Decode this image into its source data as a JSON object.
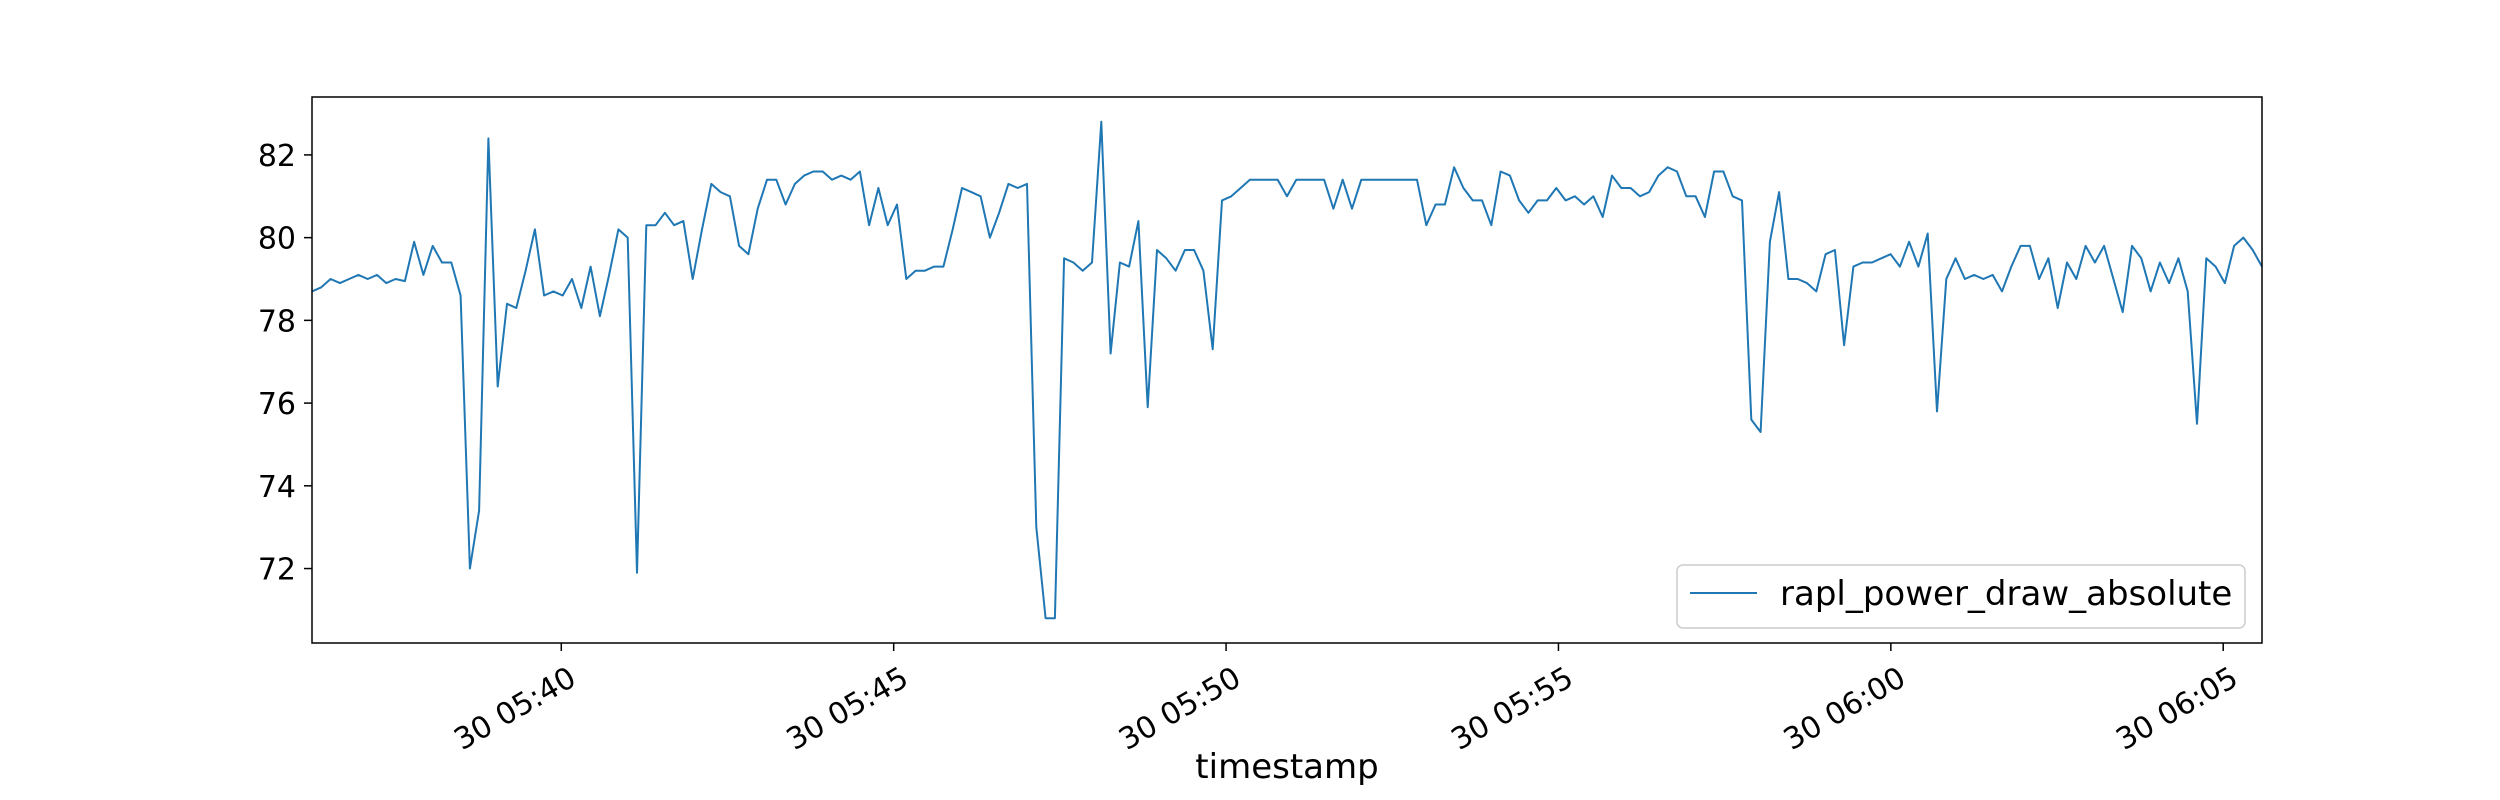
{
  "chart_data": {
    "type": "line",
    "title": "",
    "xlabel": "timestamp",
    "ylabel": "",
    "x_start": "05:36:15",
    "x_end": "06:05:35",
    "xlim": [
      "05:36:15",
      "06:05:35"
    ],
    "ylim": [
      70.2,
      83.4
    ],
    "grid": false,
    "legend_placement": "lower right",
    "x_ticks": [
      {
        "time": "05:40",
        "label": "30 05:40"
      },
      {
        "time": "05:45",
        "label": "30 05:45"
      },
      {
        "time": "05:50",
        "label": "30 05:50"
      },
      {
        "time": "05:55",
        "label": "30 05:55"
      },
      {
        "time": "06:00",
        "label": "30 06:00"
      },
      {
        "time": "06:05",
        "label": "30 06:05"
      }
    ],
    "y_ticks": [
      72,
      74,
      76,
      78,
      80,
      82
    ],
    "series": [
      {
        "name": "rapl_power_draw_absolute",
        "color": "#1f77b4",
        "values": [
          78.7,
          78.8,
          79.0,
          78.9,
          79.0,
          79.1,
          79.0,
          79.1,
          78.9,
          79.0,
          78.95,
          79.9,
          79.1,
          79.8,
          79.4,
          79.4,
          78.6,
          72.0,
          73.4,
          82.4,
          76.4,
          78.4,
          78.3,
          79.2,
          80.2,
          78.6,
          78.7,
          78.6,
          79.0,
          78.3,
          79.3,
          78.1,
          79.1,
          80.2,
          80.0,
          71.9,
          80.3,
          80.3,
          80.6,
          80.3,
          80.4,
          79.0,
          80.2,
          81.3,
          81.1,
          81.0,
          79.8,
          79.6,
          80.7,
          81.4,
          81.4,
          80.8,
          81.3,
          81.5,
          81.6,
          81.6,
          81.4,
          81.5,
          81.4,
          81.6,
          80.3,
          81.2,
          80.3,
          80.8,
          79.0,
          79.2,
          79.2,
          79.3,
          79.3,
          80.2,
          81.2,
          81.1,
          81.0,
          80.0,
          80.6,
          81.3,
          81.2,
          81.3,
          73.0,
          70.8,
          70.8,
          79.5,
          79.4,
          79.2,
          79.4,
          82.8,
          77.2,
          79.4,
          79.3,
          80.4,
          75.9,
          79.7,
          79.5,
          79.2,
          79.7,
          79.7,
          79.2,
          77.3,
          80.9,
          81.0,
          81.2,
          81.4,
          81.4,
          81.4,
          81.4,
          81.0,
          81.4,
          81.4,
          81.4,
          81.4,
          80.7,
          81.4,
          80.7,
          81.4,
          81.4,
          81.4,
          81.4,
          81.4,
          81.4,
          81.4,
          80.3,
          80.8,
          80.8,
          81.7,
          81.2,
          80.9,
          80.9,
          80.3,
          81.6,
          81.5,
          80.9,
          80.6,
          80.9,
          80.9,
          81.2,
          80.9,
          81.0,
          80.8,
          81.0,
          80.5,
          81.5,
          81.2,
          81.2,
          81.0,
          81.1,
          81.5,
          81.7,
          81.6,
          81.0,
          81.0,
          80.5,
          81.6,
          81.6,
          81.0,
          80.9,
          75.6,
          75.3,
          79.9,
          81.1,
          79.0,
          79.0,
          78.9,
          78.7,
          79.6,
          79.7,
          77.4,
          79.3,
          79.4,
          79.4,
          79.5,
          79.6,
          79.3,
          79.9,
          79.3,
          80.1,
          75.8,
          79.0,
          79.5,
          79.0,
          79.1,
          79.0,
          79.1,
          78.7,
          79.3,
          79.8,
          79.8,
          79.0,
          79.5,
          78.3,
          79.4,
          79.0,
          79.8,
          79.4,
          79.8,
          79.0,
          78.2,
          79.8,
          79.5,
          78.7,
          79.4,
          78.9,
          79.5,
          78.7,
          75.5,
          79.5,
          79.3,
          78.9,
          79.8,
          80.0,
          79.7,
          79.3
        ]
      }
    ]
  }
}
